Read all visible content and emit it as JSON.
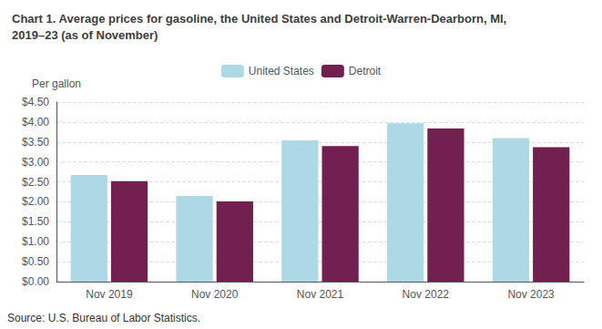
{
  "chart_data": {
    "type": "bar",
    "title": "Chart 1. Average prices for gasoline, the United States and Detroit-Warren-Dearborn, MI,\n2019–23 (as of November)",
    "ylabel": "Per gallon",
    "annotations": [
      "Source: U.S. Bureau of Labor Statistics."
    ],
    "categories": [
      "Nov 2019",
      "Nov 2020",
      "Nov 2021",
      "Nov 2022",
      "Nov 2023"
    ],
    "series": [
      {
        "name": "United States",
        "color": "#ADD8E6",
        "values": [
          2.67,
          2.15,
          3.54,
          3.97,
          3.6
        ]
      },
      {
        "name": "Detroit",
        "color": "#722050",
        "values": [
          2.52,
          2.01,
          3.4,
          3.84,
          3.37
        ]
      }
    ],
    "ylim": [
      0,
      4.5
    ],
    "yticks": [
      {
        "value": 0.0,
        "label": "$0.00"
      },
      {
        "value": 0.5,
        "label": "$0.50"
      },
      {
        "value": 1.0,
        "label": "$1.00"
      },
      {
        "value": 1.5,
        "label": "$1.50"
      },
      {
        "value": 2.0,
        "label": "$2.00"
      },
      {
        "value": 2.5,
        "label": "$2.50"
      },
      {
        "value": 3.0,
        "label": "$3.00"
      },
      {
        "value": 3.5,
        "label": "$3.50"
      },
      {
        "value": 4.0,
        "label": "$4.00"
      },
      {
        "value": 4.5,
        "label": "$4.50"
      }
    ],
    "grid": true,
    "legend": "top"
  }
}
